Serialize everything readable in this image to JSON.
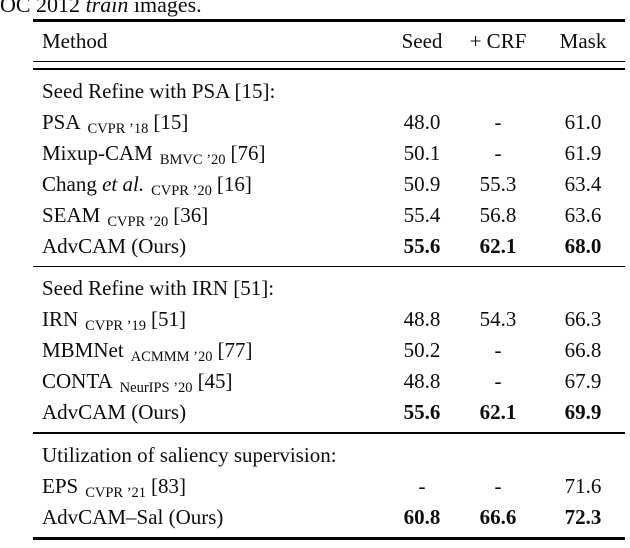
{
  "colors": {
    "background": "#ffffff",
    "text": "#0d0d0d",
    "rule": "#000000"
  },
  "caption": {
    "prefix": "OC 2012 ",
    "italic": "train",
    "suffix": " images."
  },
  "table": {
    "headers": {
      "method": "Method",
      "seed": "Seed",
      "crf": "+ CRF",
      "mask": "Mask"
    },
    "groups": [
      {
        "section": "Seed Refine with PSA [15]:",
        "rows": [
          {
            "name": "PSA",
            "name_italic": "",
            "venue": "CVPR ’18",
            "cite": "[15]",
            "seed": "48.0",
            "crf": "-",
            "mask": "61.0",
            "bold": false
          },
          {
            "name": "Mixup-CAM",
            "name_italic": "",
            "venue": "BMVC ’20",
            "cite": "[76]",
            "seed": "50.1",
            "crf": "-",
            "mask": "61.9",
            "bold": false
          },
          {
            "name": "Chang",
            "name_italic": "et al.",
            "venue": "CVPR ’20",
            "cite": "[16]",
            "seed": "50.9",
            "crf": "55.3",
            "mask": "63.4",
            "bold": false
          },
          {
            "name": "SEAM",
            "name_italic": "",
            "venue": "CVPR ’20",
            "cite": "[36]",
            "seed": "55.4",
            "crf": "56.8",
            "mask": "63.6",
            "bold": false
          },
          {
            "name": "AdvCAM (Ours)",
            "name_italic": "",
            "venue": "",
            "cite": "",
            "seed": "55.6",
            "crf": "62.1",
            "mask": "68.0",
            "bold": true
          }
        ]
      },
      {
        "section": "Seed Refine with IRN [51]:",
        "rows": [
          {
            "name": "IRN",
            "name_italic": "",
            "venue": "CVPR ’19",
            "cite": "[51]",
            "seed": "48.8",
            "crf": "54.3",
            "mask": "66.3",
            "bold": false
          },
          {
            "name": "MBMNet",
            "name_italic": "",
            "venue": "ACMMM ’20",
            "cite": "[77]",
            "seed": "50.2",
            "crf": "-",
            "mask": "66.8",
            "bold": false
          },
          {
            "name": "CONTA",
            "name_italic": "",
            "venue": "NeurIPS ’20",
            "cite": "[45]",
            "seed": "48.8",
            "crf": "-",
            "mask": "67.9",
            "bold": false
          },
          {
            "name": "AdvCAM (Ours)",
            "name_italic": "",
            "venue": "",
            "cite": "",
            "seed": "55.6",
            "crf": "62.1",
            "mask": "69.9",
            "bold": true
          }
        ]
      },
      {
        "section": "Utilization of saliency supervision:",
        "rows": [
          {
            "name": "EPS",
            "name_italic": "",
            "venue": "CVPR ’21",
            "cite": "[83]",
            "seed": "-",
            "crf": "-",
            "mask": "71.6",
            "bold": false
          },
          {
            "name": "AdvCAM–Sal (Ours)",
            "name_italic": "",
            "venue": "",
            "cite": "",
            "seed": "60.8",
            "crf": "66.6",
            "mask": "72.3",
            "bold": true
          }
        ]
      }
    ]
  }
}
